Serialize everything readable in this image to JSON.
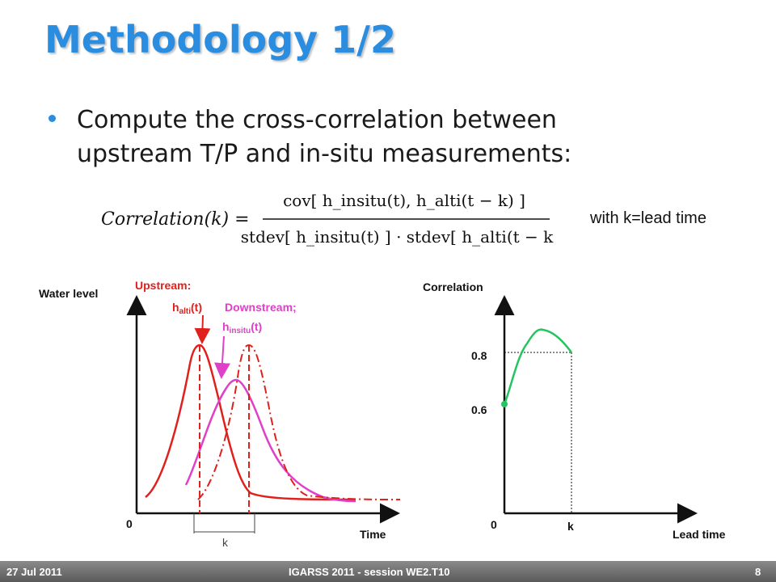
{
  "slide": {
    "title": "Methodology 1/2",
    "bullet": "Compute the cross-correlation between upstream T/P and in-situ measurements:",
    "with_note": "with k=lead time",
    "formula": {
      "lhs": "Correlation(k) =",
      "numerator": "cov[ h_insitu(t), h_alti(t − k) ]",
      "denominator": "stdev[ h_insitu(t) ] · stdev[ h_alti(t − k) ]"
    }
  },
  "left_plot": {
    "ylabel": "Water level",
    "xlabel": "Time",
    "origin": "0",
    "upstream_label": "Upstream:",
    "upstream_var": "h",
    "upstream_sub": "alti",
    "upstream_suffix": "(t)",
    "downstream_label": "Downstream;",
    "downstream_var": "h",
    "downstream_sub": "insitu",
    "downstream_suffix": "(t)",
    "lag_label": "k",
    "colors": {
      "upstream": "#e0201c",
      "downstream": "#e040c8"
    }
  },
  "right_plot": {
    "ylabel": "Correlation",
    "xlabel": "Lead time",
    "origin": "0",
    "tick_high": "0.8",
    "tick_low": "0.6",
    "k_label": "k",
    "colors": {
      "curve": "#22c55e"
    }
  },
  "footer": {
    "date": "27 Jul 2011",
    "session": "IGARSS 2011 - session WE2.T10",
    "page": "8"
  }
}
